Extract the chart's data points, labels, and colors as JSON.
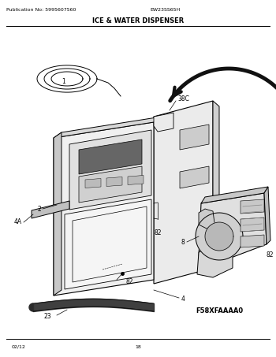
{
  "pub_no": "Publication No: 5995607560",
  "model": "EW23SS65H",
  "title": "ICE & WATER DISPENSER",
  "diagram_code": "F58XFAAAA0",
  "date": "02/12",
  "page": "18",
  "bg_color": "#ffffff",
  "line_color": "#000000",
  "gray_light": "#e8e8e8",
  "gray_med": "#cccccc",
  "gray_dark": "#aaaaaa",
  "gray_darker": "#888888",
  "black_part": "#333333"
}
